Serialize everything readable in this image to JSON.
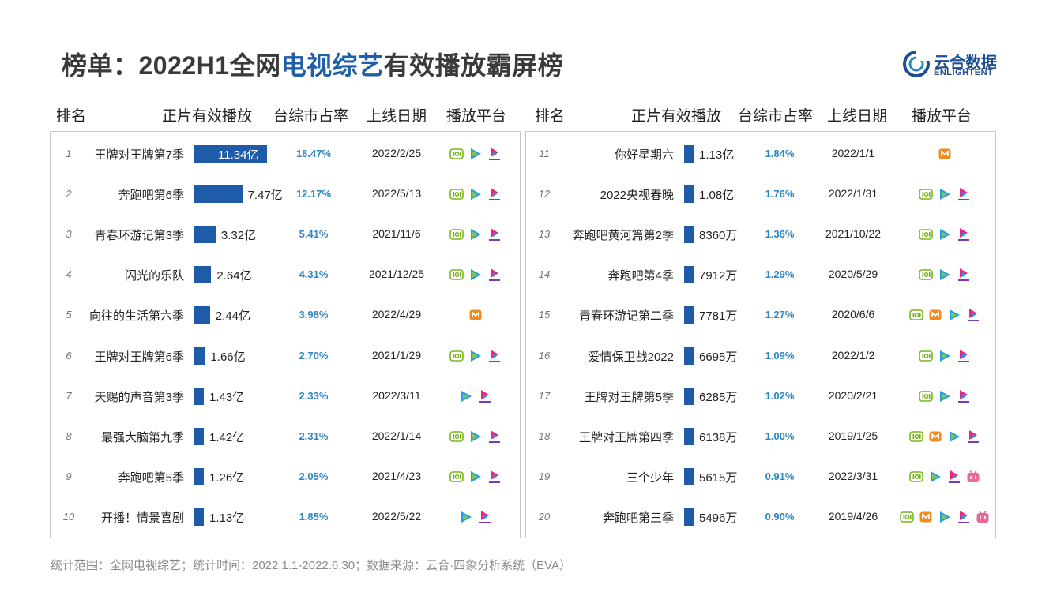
{
  "title": {
    "prefix": "榜单：2022H1全网",
    "highlight": "电视综艺",
    "suffix": "有效播放霸屏榜"
  },
  "logo": {
    "cn": "云合数据",
    "en": "ENLIGHTENT"
  },
  "headers": {
    "rank": "排名",
    "play": "正片有效播放",
    "share": "台综市占率",
    "date": "上线日期",
    "platform": "播放平台"
  },
  "colors": {
    "bar": "#1e5ca9",
    "share": "#2e86c1",
    "title_highlight": "#1f5fa8",
    "iqiyi": "#7ab51d",
    "tencent": "#20a0e8",
    "youku": "#e6297d",
    "mgtv": "#f08a1c",
    "bilibili": "#e86a9a"
  },
  "chart_data": {
    "type": "table",
    "title": "榜单：2022H1全网电视综艺有效播放霸屏榜",
    "columns": [
      "排名",
      "正片有效播放",
      "台综市占率",
      "上线日期",
      "播放平台"
    ],
    "value_unit": "亿",
    "rows": [
      {
        "rank": "1",
        "name": "王牌对王牌第7季",
        "value": 11.34,
        "label": "11.34亿",
        "share": "18.47%",
        "date": "2022/2/25",
        "platforms": [
          "iqiyi",
          "tencent",
          "youku"
        ]
      },
      {
        "rank": "2",
        "name": "奔跑吧第6季",
        "value": 7.47,
        "label": "7.47亿",
        "share": "12.17%",
        "date": "2022/5/13",
        "platforms": [
          "iqiyi",
          "tencent",
          "youku"
        ]
      },
      {
        "rank": "3",
        "name": "青春环游记第3季",
        "value": 3.32,
        "label": "3.32亿",
        "share": "5.41%",
        "date": "2021/11/6",
        "platforms": [
          "iqiyi",
          "tencent",
          "youku"
        ]
      },
      {
        "rank": "4",
        "name": "闪光的乐队",
        "value": 2.64,
        "label": "2.64亿",
        "share": "4.31%",
        "date": "2021/12/25",
        "platforms": [
          "iqiyi",
          "tencent",
          "youku"
        ]
      },
      {
        "rank": "5",
        "name": "向往的生活第六季",
        "value": 2.44,
        "label": "2.44亿",
        "share": "3.98%",
        "date": "2022/4/29",
        "platforms": [
          "mgtv"
        ]
      },
      {
        "rank": "6",
        "name": "王牌对王牌第6季",
        "value": 1.66,
        "label": "1.66亿",
        "share": "2.70%",
        "date": "2021/1/29",
        "platforms": [
          "iqiyi",
          "tencent",
          "youku"
        ]
      },
      {
        "rank": "7",
        "name": "天赐的声音第3季",
        "value": 1.43,
        "label": "1.43亿",
        "share": "2.33%",
        "date": "2022/3/11",
        "platforms": [
          "tencent",
          "youku"
        ]
      },
      {
        "rank": "8",
        "name": "最强大脑第九季",
        "value": 1.42,
        "label": "1.42亿",
        "share": "2.31%",
        "date": "2022/1/14",
        "platforms": [
          "iqiyi",
          "tencent",
          "youku"
        ]
      },
      {
        "rank": "9",
        "name": "奔跑吧第5季",
        "value": 1.26,
        "label": "1.26亿",
        "share": "2.05%",
        "date": "2021/4/23",
        "platforms": [
          "iqiyi",
          "tencent",
          "youku"
        ]
      },
      {
        "rank": "10",
        "name": "开播！情景喜剧",
        "value": 1.13,
        "label": "1.13亿",
        "share": "1.85%",
        "date": "2022/5/22",
        "platforms": [
          "tencent",
          "youku"
        ]
      },
      {
        "rank": "11",
        "name": "你好星期六",
        "value": 1.13,
        "label": "1.13亿",
        "share": "1.84%",
        "date": "2022/1/1",
        "platforms": [
          "mgtv"
        ]
      },
      {
        "rank": "12",
        "name": "2022央视春晚",
        "value": 1.08,
        "label": "1.08亿",
        "share": "1.76%",
        "date": "2022/1/31",
        "platforms": [
          "iqiyi",
          "tencent",
          "youku"
        ]
      },
      {
        "rank": "13",
        "name": "奔跑吧黄河篇第2季",
        "value": 0.836,
        "label": "8360万",
        "share": "1.36%",
        "date": "2021/10/22",
        "platforms": [
          "iqiyi",
          "tencent",
          "youku"
        ]
      },
      {
        "rank": "14",
        "name": "奔跑吧第4季",
        "value": 0.7912,
        "label": "7912万",
        "share": "1.29%",
        "date": "2020/5/29",
        "platforms": [
          "iqiyi",
          "tencent",
          "youku"
        ]
      },
      {
        "rank": "15",
        "name": "青春环游记第二季",
        "value": 0.7781,
        "label": "7781万",
        "share": "1.27%",
        "date": "2020/6/6",
        "platforms": [
          "iqiyi",
          "mgtv",
          "tencent",
          "youku"
        ]
      },
      {
        "rank": "16",
        "name": "爱情保卫战2022",
        "value": 0.6695,
        "label": "6695万",
        "share": "1.09%",
        "date": "2022/1/2",
        "platforms": [
          "iqiyi",
          "tencent",
          "youku"
        ]
      },
      {
        "rank": "17",
        "name": "王牌对王牌第5季",
        "value": 0.6285,
        "label": "6285万",
        "share": "1.02%",
        "date": "2020/2/21",
        "platforms": [
          "iqiyi",
          "tencent",
          "youku"
        ]
      },
      {
        "rank": "18",
        "name": "王牌对王牌第四季",
        "value": 0.6138,
        "label": "6138万",
        "share": "1.00%",
        "date": "2019/1/25",
        "platforms": [
          "iqiyi",
          "mgtv",
          "tencent",
          "youku"
        ]
      },
      {
        "rank": "19",
        "name": "三个少年",
        "value": 0.5615,
        "label": "5615万",
        "share": "0.91%",
        "date": "2022/3/31",
        "platforms": [
          "iqiyi",
          "tencent",
          "youku",
          "bilibili"
        ]
      },
      {
        "rank": "20",
        "name": "奔跑吧第三季",
        "value": 0.5496,
        "label": "5496万",
        "share": "0.90%",
        "date": "2019/4/26",
        "platforms": [
          "iqiyi",
          "mgtv",
          "tencent",
          "youku",
          "bilibili"
        ]
      }
    ]
  },
  "footer": "统计范围：全网电视综艺；统计时间：2022.1.1-2022.6.30；数据来源：云合·四象分析系统（EVA）"
}
